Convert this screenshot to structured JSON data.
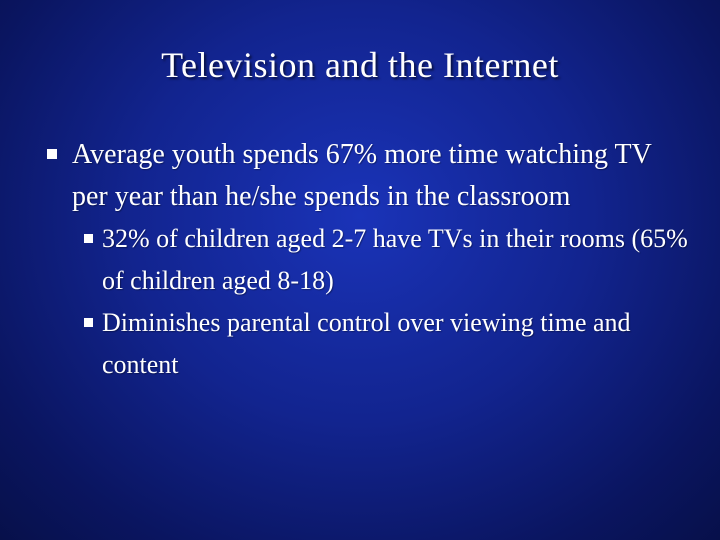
{
  "slide": {
    "title": "Television and the Internet",
    "bullets": [
      {
        "text": "Average youth spends 67% more time watching TV per year than he/she spends in the classroom",
        "sub_bullets": [
          "32% of children aged 2-7 have TVs in their rooms (65% of children aged 8-18)",
          "Diminishes parental control over viewing time and content"
        ]
      }
    ]
  },
  "colors": {
    "background": "#12248f",
    "text": "#ffffff"
  },
  "icons": {
    "bullet": "square-bullet-icon"
  }
}
